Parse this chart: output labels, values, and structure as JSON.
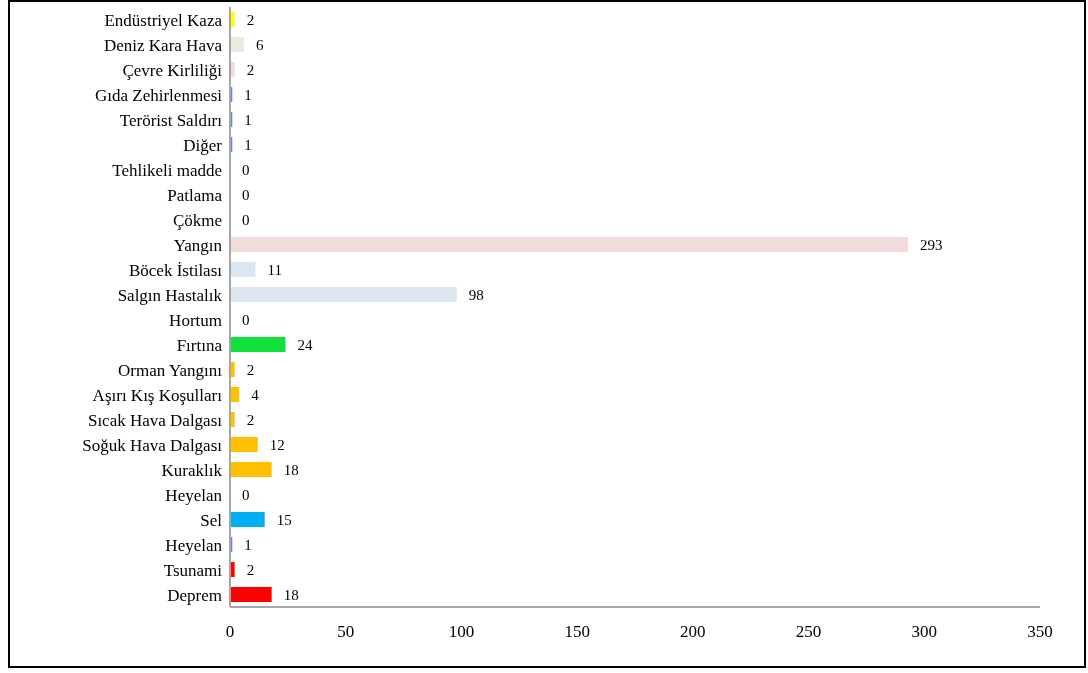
{
  "chart_data": {
    "type": "bar",
    "orientation": "horizontal",
    "categories": [
      "Endüstriyel Kaza",
      "Deniz Kara Hava",
      "Çevre Kirliliği",
      "Gıda Zehirlenmesi",
      "Terörist Saldırı",
      "Diğer",
      "Tehlikeli madde",
      "Patlama",
      "Çökme",
      "Yangın",
      "Böcek İstilası",
      "Salgın Hastalık",
      "Hortum",
      "Fırtına",
      "Orman Yangını",
      "Aşırı Kış Koşulları",
      "Sıcak Hava Dalgası",
      "Soğuk Hava Dalgası",
      "Kuraklık",
      "Heyelan",
      "Sel",
      "Heyelan",
      "Tsunami",
      "Deprem"
    ],
    "values": [
      2,
      6,
      2,
      1,
      1,
      1,
      0,
      0,
      0,
      293,
      11,
      98,
      0,
      24,
      2,
      4,
      2,
      12,
      18,
      0,
      15,
      1,
      2,
      18
    ],
    "colors": [
      "#ffff00",
      "#e8ecdc",
      "#f2dcdb",
      "#5b8fd0",
      "#5b8fd0",
      "#5b8fd0",
      "#5b8fd0",
      "#5b8fd0",
      "#5b8fd0",
      "#f2dcdb",
      "#dce6f1",
      "#dce6f1",
      "#5b8fd0",
      "#12e03c",
      "#ffc000",
      "#ffc000",
      "#ffc000",
      "#ffc000",
      "#ffc000",
      "#5b8fd0",
      "#00b0f0",
      "#5b8fd0",
      "#ff0000",
      "#ff0000"
    ],
    "xlim": [
      0,
      350
    ],
    "xticks": [
      0,
      50,
      100,
      150,
      200,
      250,
      300,
      350
    ],
    "data_labels": true,
    "grid": false
  }
}
